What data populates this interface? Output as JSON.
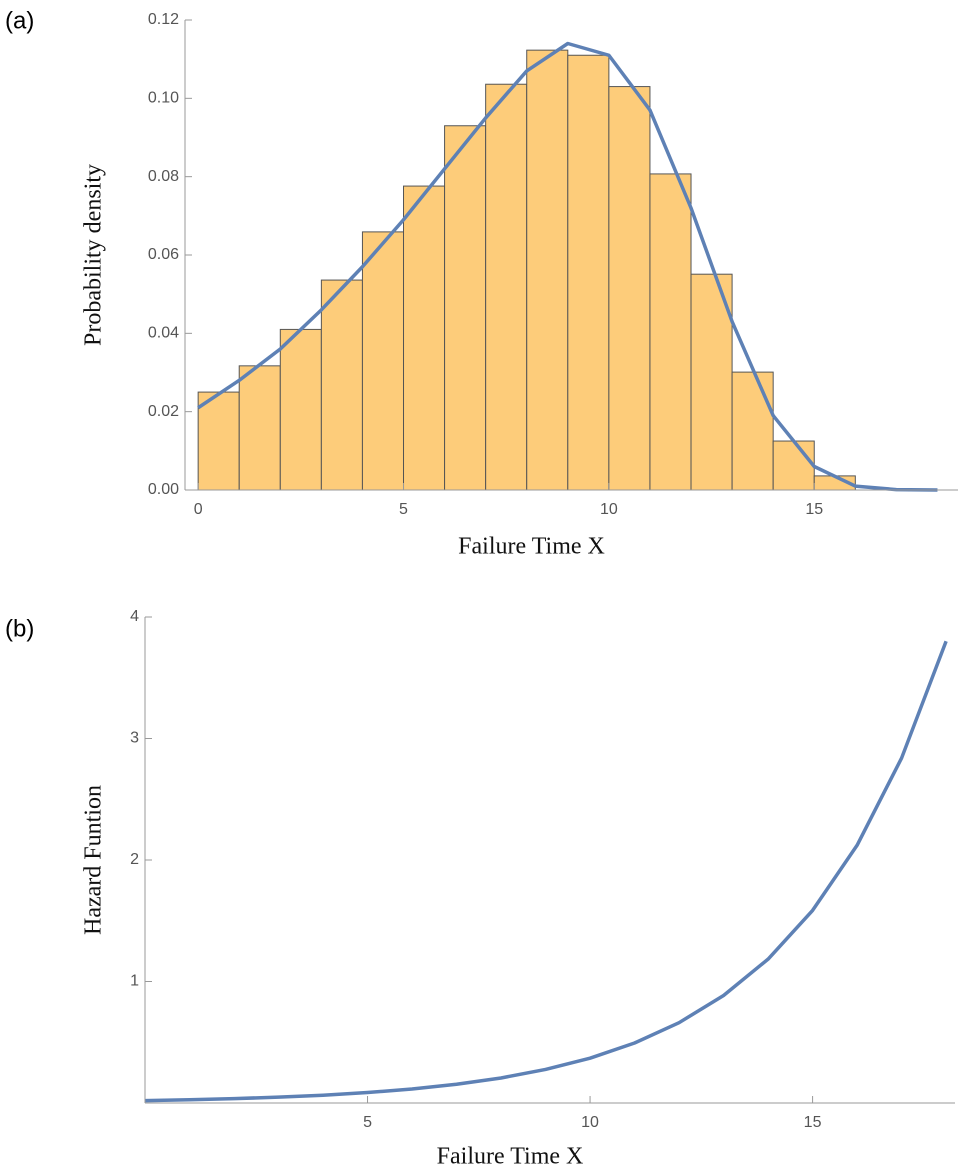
{
  "chart_data": [
    {
      "type": "histogram",
      "panel_label": "(a)",
      "bins": [
        0,
        1,
        2,
        3,
        4,
        5,
        6,
        7,
        8,
        9,
        10,
        11,
        12,
        13,
        14,
        15,
        16
      ],
      "values": [
        0.025,
        0.0317,
        0.041,
        0.0536,
        0.0659,
        0.0776,
        0.093,
        0.1036,
        0.1123,
        0.111,
        0.103,
        0.0807,
        0.0551,
        0.0301,
        0.0125,
        0.0036
      ],
      "color": "#fdcc7a",
      "line": {
        "color": "#5e81b5",
        "x": [
          0,
          1,
          2,
          3,
          4,
          5,
          6,
          7,
          8,
          9,
          10,
          11,
          12,
          13,
          14,
          15,
          16,
          17,
          18
        ],
        "values": [
          0.021,
          0.028,
          0.036,
          0.046,
          0.057,
          0.069,
          0.082,
          0.095,
          0.107,
          0.114,
          0.111,
          0.097,
          0.072,
          0.043,
          0.019,
          0.006,
          0.001,
          0.0001,
          0
        ]
      },
      "xlabel": "Failure Time X",
      "ylabel": "Probability density",
      "xlim": [
        -0.32,
        18.5
      ],
      "ylim": [
        0,
        0.12
      ],
      "xticks": [
        0,
        5,
        10,
        15
      ],
      "yticks": [
        {
          "value": 0,
          "label": "0.00"
        },
        0.02,
        0.04,
        0.06,
        0.08,
        {
          "value": 0.1,
          "label": "0.10"
        },
        0.12
      ]
    },
    {
      "type": "line",
      "panel_label": "(b)",
      "x": [
        0,
        1,
        2,
        3,
        4,
        5,
        6,
        7,
        8,
        9,
        10,
        11,
        12,
        13,
        14,
        15,
        16,
        17,
        18
      ],
      "values": [
        0.02,
        0.027,
        0.036,
        0.048,
        0.064,
        0.086,
        0.115,
        0.154,
        0.206,
        0.276,
        0.369,
        0.494,
        0.661,
        0.885,
        1.184,
        1.585,
        2.121,
        2.839,
        3.8
      ],
      "color": "#5e81b5",
      "xlabel": "Failure Time X",
      "ylabel": "Hazard Funtion",
      "xlim": [
        0,
        18.2
      ],
      "ylim": [
        0,
        4
      ],
      "xticks": [
        5,
        10,
        15
      ],
      "yticks": [
        1,
        2,
        3,
        4
      ]
    }
  ]
}
